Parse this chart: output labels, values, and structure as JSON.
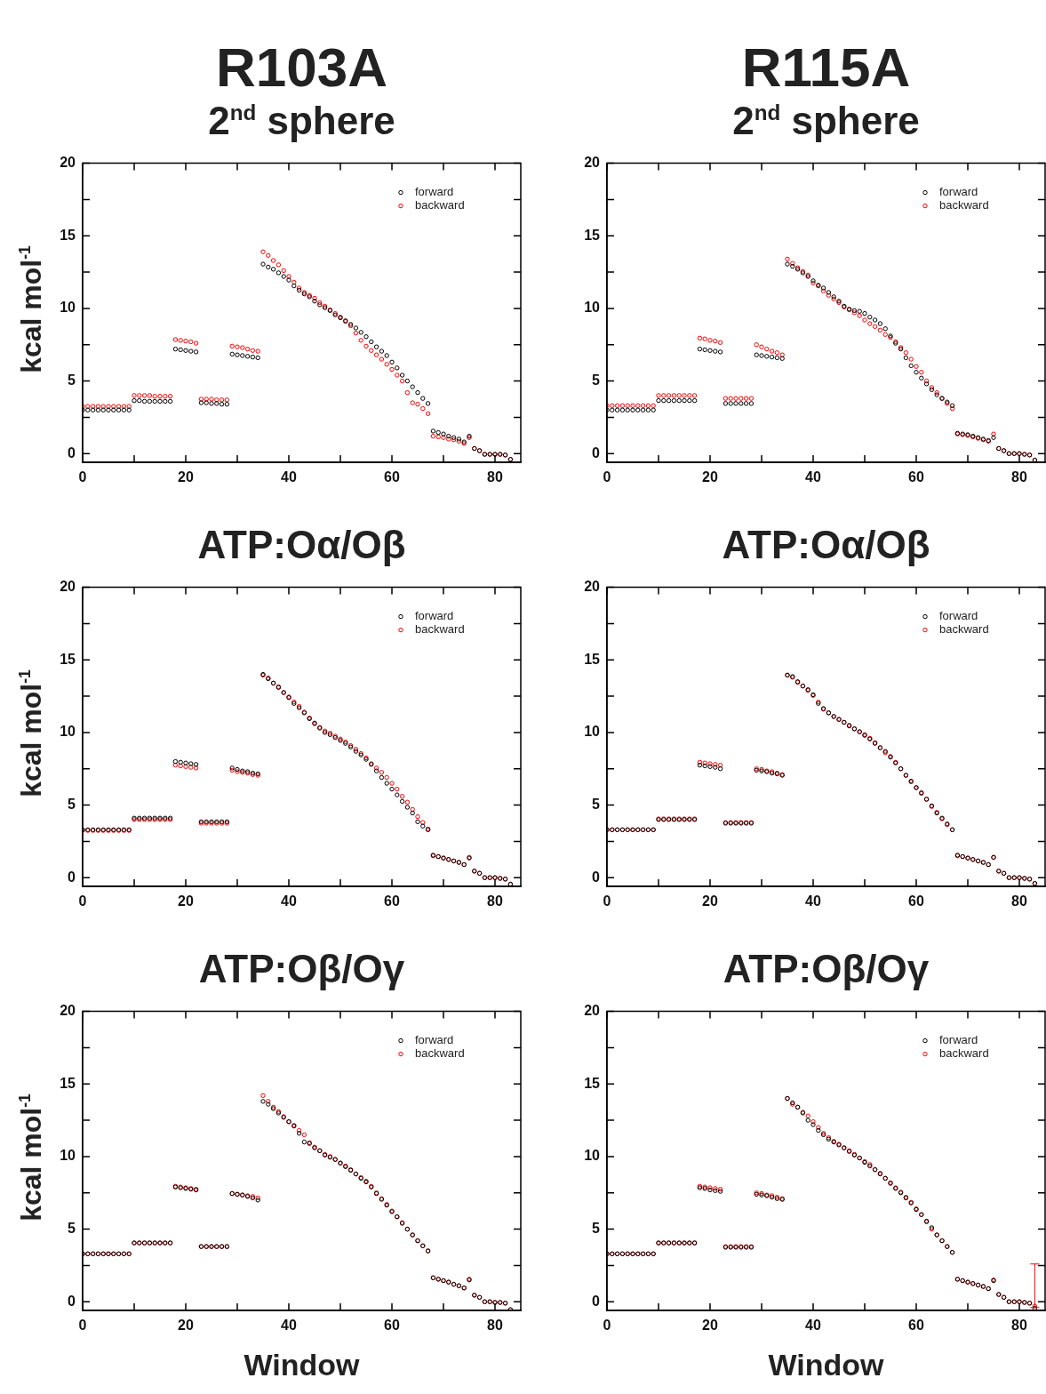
{
  "chart_data": [
    {
      "type": "scatter",
      "title": "R103A",
      "subtitle": "2$^{nd}$ sphere",
      "ylabel": "kcal mol$^{-1}$",
      "marker": "circle",
      "legend": "top right",
      "grid": false,
      "xlim": [
        0,
        85
      ],
      "xticks": [
        0,
        {
          "value": 10,
          "label": null
        },
        20,
        {
          "value": 30,
          "label": null
        },
        40,
        {
          "value": 50,
          "label": null
        },
        60,
        {
          "value": 70,
          "label": null
        },
        80
      ],
      "ylim": [
        -0.6,
        20
      ],
      "yticks": [
        0,
        {
          "value": 2.5,
          "label": null
        },
        5,
        {
          "value": 7.5,
          "label": null
        },
        10,
        {
          "value": 12.5,
          "label": null
        },
        15,
        {
          "value": 17.5,
          "label": null
        },
        20
      ],
      "x": [
        0,
        1,
        2,
        3,
        4,
        5,
        6,
        7,
        8,
        9,
        10,
        11,
        12,
        13,
        14,
        15,
        16,
        17,
        18,
        19,
        20,
        21,
        22,
        23,
        24,
        25,
        26,
        27,
        28,
        29,
        30,
        31,
        32,
        33,
        34,
        35,
        36,
        37,
        38,
        39,
        40,
        41,
        42,
        43,
        44,
        45,
        46,
        47,
        48,
        49,
        50,
        51,
        52,
        53,
        54,
        55,
        56,
        57,
        58,
        59,
        60,
        61,
        62,
        63,
        64,
        65,
        66,
        67,
        68,
        69,
        70,
        71,
        72,
        73,
        74,
        75,
        76,
        77,
        78,
        79,
        80,
        81,
        82,
        83
      ],
      "series": [
        {
          "name": "forward",
          "color": "#000000",
          "values": [
            3.0,
            3.0,
            3.0,
            3.0,
            3.0,
            3.0,
            3.0,
            3.0,
            3.0,
            3.0,
            3.65,
            3.65,
            3.6,
            3.6,
            3.6,
            3.6,
            3.6,
            3.6,
            7.2,
            7.15,
            7.1,
            7.05,
            7.0,
            3.5,
            3.5,
            3.45,
            3.45,
            3.4,
            3.4,
            6.85,
            6.8,
            6.75,
            6.7,
            6.65,
            6.6,
            13.05,
            12.85,
            12.7,
            12.45,
            12.2,
            11.95,
            11.55,
            11.25,
            11.0,
            10.8,
            10.5,
            10.25,
            10.05,
            9.85,
            9.55,
            9.35,
            9.15,
            8.9,
            8.65,
            8.35,
            8.05,
            7.7,
            7.35,
            7.05,
            6.75,
            6.3,
            5.9,
            5.4,
            5.0,
            4.6,
            4.2,
            3.8,
            3.45,
            1.55,
            1.45,
            1.35,
            1.2,
            1.1,
            1.0,
            0.8,
            1.2,
            0.35,
            0.2,
            -0.05,
            -0.05,
            -0.05,
            -0.05,
            -0.1,
            -0.4
          ]
        },
        {
          "name": "backward",
          "color": "#ff0000",
          "values": [
            3.25,
            3.25,
            3.25,
            3.25,
            3.25,
            3.25,
            3.25,
            3.25,
            3.25,
            3.25,
            4.0,
            4.0,
            4.0,
            4.0,
            3.95,
            3.95,
            3.95,
            3.95,
            7.85,
            7.8,
            7.75,
            7.7,
            7.6,
            3.75,
            3.75,
            3.75,
            3.7,
            3.7,
            3.7,
            7.4,
            7.35,
            7.3,
            7.2,
            7.1,
            7.05,
            13.9,
            13.65,
            13.3,
            13.0,
            12.6,
            12.2,
            11.8,
            11.4,
            11.1,
            10.9,
            10.7,
            10.4,
            10.15,
            9.9,
            9.65,
            9.4,
            9.1,
            8.8,
            8.3,
            7.8,
            7.4,
            7.1,
            6.8,
            6.5,
            6.15,
            5.8,
            5.4,
            5.0,
            4.2,
            3.5,
            3.4,
            3.1,
            2.75,
            1.2,
            1.15,
            1.1,
            1.0,
            0.95,
            0.85,
            0.7,
            1.1,
            0.35,
            0.2,
            -0.05,
            -0.05,
            -0.05,
            -0.05,
            -0.1,
            -0.4
          ]
        }
      ]
    },
    {
      "type": "scatter",
      "title": "R115A",
      "subtitle": "2$^{nd}$ sphere",
      "marker": "circle",
      "legend": "top right",
      "grid": false,
      "xlim": [
        0,
        85
      ],
      "xticks": [
        0,
        {
          "value": 10,
          "label": null
        },
        20,
        {
          "value": 30,
          "label": null
        },
        40,
        {
          "value": 50,
          "label": null
        },
        60,
        {
          "value": 70,
          "label": null
        },
        80
      ],
      "ylim": [
        -0.6,
        20
      ],
      "yticks": [
        0,
        {
          "value": 2.5,
          "label": null
        },
        5,
        {
          "value": 7.5,
          "label": null
        },
        10,
        {
          "value": 12.5,
          "label": null
        },
        15,
        {
          "value": 17.5,
          "label": null
        },
        20
      ],
      "x": [
        0,
        1,
        2,
        3,
        4,
        5,
        6,
        7,
        8,
        9,
        10,
        11,
        12,
        13,
        14,
        15,
        16,
        17,
        18,
        19,
        20,
        21,
        22,
        23,
        24,
        25,
        26,
        27,
        28,
        29,
        30,
        31,
        32,
        33,
        34,
        35,
        36,
        37,
        38,
        39,
        40,
        41,
        42,
        43,
        44,
        45,
        46,
        47,
        48,
        49,
        50,
        51,
        52,
        53,
        54,
        55,
        56,
        57,
        58,
        59,
        60,
        61,
        62,
        63,
        64,
        65,
        66,
        67,
        68,
        69,
        70,
        71,
        72,
        73,
        74,
        75,
        76,
        77,
        78,
        79,
        80,
        81,
        82,
        83
      ],
      "series": [
        {
          "name": "forward",
          "color": "#000000",
          "values": [
            3.0,
            3.0,
            3.0,
            3.0,
            3.0,
            3.0,
            3.0,
            3.0,
            3.0,
            3.0,
            3.65,
            3.65,
            3.65,
            3.65,
            3.65,
            3.65,
            3.65,
            3.65,
            7.2,
            7.15,
            7.1,
            7.05,
            7.0,
            3.45,
            3.45,
            3.45,
            3.45,
            3.45,
            3.45,
            6.8,
            6.75,
            6.7,
            6.65,
            6.6,
            6.55,
            13.05,
            12.9,
            12.7,
            12.45,
            12.2,
            11.9,
            11.6,
            11.4,
            11.1,
            10.8,
            10.5,
            10.15,
            9.95,
            9.85,
            9.8,
            9.65,
            9.4,
            9.2,
            8.95,
            8.6,
            8.1,
            7.6,
            7.2,
            6.6,
            6.05,
            5.6,
            5.2,
            4.8,
            4.4,
            4.05,
            3.8,
            3.55,
            3.3,
            1.4,
            1.35,
            1.3,
            1.2,
            1.1,
            1.0,
            0.9,
            1.1,
            0.35,
            0.2,
            0.0,
            0.0,
            0.0,
            -0.05,
            -0.1,
            -0.45
          ]
        },
        {
          "name": "backward",
          "color": "#ff0000",
          "values": [
            3.3,
            3.3,
            3.3,
            3.3,
            3.3,
            3.3,
            3.3,
            3.3,
            3.3,
            3.3,
            4.0,
            4.0,
            4.0,
            4.0,
            4.0,
            4.0,
            4.0,
            4.0,
            7.95,
            7.9,
            7.8,
            7.75,
            7.65,
            3.8,
            3.8,
            3.8,
            3.8,
            3.8,
            3.8,
            7.5,
            7.35,
            7.2,
            7.05,
            6.95,
            6.8,
            13.4,
            13.1,
            12.8,
            12.55,
            12.3,
            11.75,
            11.55,
            11.2,
            10.9,
            10.65,
            10.4,
            10.1,
            9.9,
            9.7,
            9.5,
            9.2,
            8.95,
            8.75,
            8.5,
            8.2,
            8.0,
            7.7,
            7.3,
            6.95,
            6.5,
            6.0,
            5.6,
            5.0,
            4.55,
            4.2,
            3.8,
            3.45,
            3.1,
            1.35,
            1.3,
            1.25,
            1.15,
            1.05,
            0.95,
            0.85,
            1.35,
            0.35,
            0.2,
            0.0,
            0.0,
            0.0,
            -0.05,
            -0.1,
            -0.45
          ]
        }
      ]
    },
    {
      "type": "scatter",
      "title": "ATP:Oα/Oβ",
      "ylabel": "kcal mol$^{-1}$",
      "marker": "circle",
      "legend": "top right",
      "grid": false,
      "xlim": [
        0,
        85
      ],
      "xticks": [
        0,
        {
          "value": 10,
          "label": null
        },
        20,
        {
          "value": 30,
          "label": null
        },
        40,
        {
          "value": 50,
          "label": null
        },
        60,
        {
          "value": 70,
          "label": null
        },
        80
      ],
      "ylim": [
        -0.6,
        20
      ],
      "yticks": [
        0,
        {
          "value": 2.5,
          "label": null
        },
        5,
        {
          "value": 7.5,
          "label": null
        },
        10,
        {
          "value": 12.5,
          "label": null
        },
        15,
        {
          "value": 17.5,
          "label": null
        },
        20
      ],
      "x": [
        0,
        1,
        2,
        3,
        4,
        5,
        6,
        7,
        8,
        9,
        10,
        11,
        12,
        13,
        14,
        15,
        16,
        17,
        18,
        19,
        20,
        21,
        22,
        23,
        24,
        25,
        26,
        27,
        28,
        29,
        30,
        31,
        32,
        33,
        34,
        35,
        36,
        37,
        38,
        39,
        40,
        41,
        42,
        43,
        44,
        45,
        46,
        47,
        48,
        49,
        50,
        51,
        52,
        53,
        54,
        55,
        56,
        57,
        58,
        59,
        60,
        61,
        62,
        63,
        64,
        65,
        66,
        67,
        68,
        69,
        70,
        71,
        72,
        73,
        74,
        75,
        76,
        77,
        78,
        79,
        80,
        81,
        82,
        83
      ],
      "series": [
        {
          "name": "forward",
          "color": "#000000",
          "values": [
            3.3,
            3.3,
            3.3,
            3.3,
            3.3,
            3.3,
            3.3,
            3.3,
            3.3,
            3.3,
            4.1,
            4.1,
            4.1,
            4.1,
            4.1,
            4.1,
            4.1,
            4.1,
            8.0,
            7.95,
            7.9,
            7.85,
            7.8,
            3.85,
            3.85,
            3.85,
            3.85,
            3.85,
            3.85,
            7.55,
            7.45,
            7.35,
            7.3,
            7.2,
            7.15,
            14.0,
            13.7,
            13.4,
            13.1,
            12.75,
            12.4,
            12.0,
            11.7,
            11.35,
            10.95,
            10.65,
            10.3,
            10.0,
            9.85,
            9.65,
            9.45,
            9.25,
            9.0,
            8.7,
            8.45,
            8.15,
            7.8,
            7.35,
            6.9,
            6.5,
            6.1,
            5.7,
            5.25,
            4.85,
            4.45,
            3.85,
            3.55,
            3.3,
            1.55,
            1.45,
            1.35,
            1.25,
            1.15,
            1.05,
            0.9,
            1.35,
            0.45,
            0.3,
            0.0,
            0.0,
            0.0,
            -0.05,
            -0.1,
            -0.45
          ]
        },
        {
          "name": "backward",
          "color": "#ff0000",
          "values": [
            3.25,
            3.25,
            3.25,
            3.25,
            3.25,
            3.25,
            3.25,
            3.25,
            3.25,
            3.25,
            4.0,
            4.0,
            4.0,
            4.0,
            4.0,
            4.0,
            4.0,
            4.0,
            7.75,
            7.7,
            7.65,
            7.6,
            7.55,
            3.75,
            3.75,
            3.75,
            3.75,
            3.75,
            3.75,
            7.4,
            7.3,
            7.25,
            7.2,
            7.1,
            7.05,
            13.95,
            13.75,
            13.4,
            13.15,
            12.75,
            12.45,
            12.1,
            11.8,
            11.4,
            11.0,
            10.6,
            10.35,
            10.1,
            9.95,
            9.75,
            9.55,
            9.35,
            9.1,
            8.85,
            8.55,
            8.25,
            7.85,
            7.55,
            7.25,
            6.9,
            6.5,
            6.1,
            5.6,
            5.2,
            4.7,
            4.2,
            3.8,
            3.35,
            1.5,
            1.45,
            1.35,
            1.25,
            1.15,
            1.05,
            0.9,
            1.4,
            0.45,
            0.3,
            0.0,
            0.0,
            0.0,
            -0.05,
            -0.1,
            -0.45
          ]
        }
      ]
    },
    {
      "type": "scatter",
      "title": "ATP:Oα/Oβ",
      "marker": "circle",
      "legend": "top right",
      "grid": false,
      "xlim": [
        0,
        85
      ],
      "xticks": [
        0,
        {
          "value": 10,
          "label": null
        },
        20,
        {
          "value": 30,
          "label": null
        },
        40,
        {
          "value": 50,
          "label": null
        },
        60,
        {
          "value": 70,
          "label": null
        },
        80
      ],
      "ylim": [
        -0.6,
        20
      ],
      "yticks": [
        0,
        {
          "value": 2.5,
          "label": null
        },
        5,
        {
          "value": 7.5,
          "label": null
        },
        10,
        {
          "value": 12.5,
          "label": null
        },
        15,
        {
          "value": 17.5,
          "label": null
        },
        20
      ],
      "x": [
        0,
        1,
        2,
        3,
        4,
        5,
        6,
        7,
        8,
        9,
        10,
        11,
        12,
        13,
        14,
        15,
        16,
        17,
        18,
        19,
        20,
        21,
        22,
        23,
        24,
        25,
        26,
        27,
        28,
        29,
        30,
        31,
        32,
        33,
        34,
        35,
        36,
        37,
        38,
        39,
        40,
        41,
        42,
        43,
        44,
        45,
        46,
        47,
        48,
        49,
        50,
        51,
        52,
        53,
        54,
        55,
        56,
        57,
        58,
        59,
        60,
        61,
        62,
        63,
        64,
        65,
        66,
        67,
        68,
        69,
        70,
        71,
        72,
        73,
        74,
        75,
        76,
        77,
        78,
        79,
        80,
        81,
        82,
        83
      ],
      "series": [
        {
          "name": "forward",
          "color": "#000000",
          "values": [
            3.3,
            3.3,
            3.3,
            3.3,
            3.3,
            3.3,
            3.3,
            3.3,
            3.3,
            3.3,
            4.0,
            4.0,
            4.0,
            4.0,
            4.0,
            4.0,
            4.0,
            4.0,
            7.75,
            7.7,
            7.65,
            7.6,
            7.5,
            3.75,
            3.75,
            3.75,
            3.75,
            3.75,
            3.75,
            7.4,
            7.35,
            7.3,
            7.2,
            7.15,
            7.05,
            13.95,
            13.85,
            13.5,
            13.2,
            12.95,
            12.6,
            12.0,
            11.65,
            11.35,
            11.1,
            10.9,
            10.7,
            10.45,
            10.25,
            10.05,
            9.8,
            9.55,
            9.25,
            8.95,
            8.7,
            8.3,
            7.9,
            7.5,
            7.05,
            6.65,
            6.2,
            5.85,
            5.4,
            4.95,
            4.45,
            4.1,
            3.7,
            3.3,
            1.55,
            1.45,
            1.35,
            1.25,
            1.15,
            1.05,
            0.9,
            1.4,
            0.45,
            0.3,
            0.0,
            0.0,
            0.0,
            -0.05,
            -0.1,
            -0.4
          ]
        },
        {
          "name": "backward",
          "color": "#ff0000",
          "values": [
            3.3,
            3.3,
            3.3,
            3.3,
            3.3,
            3.3,
            3.3,
            3.3,
            3.3,
            3.3,
            4.05,
            4.05,
            4.05,
            4.05,
            4.05,
            4.05,
            4.05,
            4.05,
            7.95,
            7.9,
            7.85,
            7.8,
            7.75,
            3.8,
            3.8,
            3.8,
            3.8,
            3.8,
            3.8,
            7.5,
            7.45,
            7.35,
            7.3,
            7.2,
            7.1,
            13.95,
            13.8,
            13.45,
            13.2,
            12.9,
            12.55,
            12.1,
            11.6,
            11.35,
            11.1,
            10.9,
            10.7,
            10.5,
            10.25,
            10.05,
            9.85,
            9.6,
            9.3,
            8.95,
            8.6,
            8.35,
            7.95,
            7.5,
            7.05,
            6.6,
            6.2,
            5.8,
            5.4,
            4.9,
            4.5,
            4.05,
            3.65,
            3.3,
            1.5,
            1.45,
            1.35,
            1.25,
            1.15,
            1.05,
            0.9,
            1.4,
            0.45,
            0.3,
            0.0,
            0.0,
            0.0,
            -0.05,
            -0.1,
            -0.4
          ]
        }
      ]
    },
    {
      "type": "scatter",
      "title": "ATP:Oβ/Oγ",
      "ylabel": "kcal mol$^{-1}$",
      "xlabel": "Window",
      "marker": "circle",
      "legend": "top right",
      "grid": false,
      "xlim": [
        0,
        85
      ],
      "xticks": [
        0,
        {
          "value": 10,
          "label": null
        },
        20,
        {
          "value": 30,
          "label": null
        },
        40,
        {
          "value": 50,
          "label": null
        },
        60,
        {
          "value": 70,
          "label": null
        },
        80
      ],
      "ylim": [
        -0.6,
        20
      ],
      "yticks": [
        0,
        {
          "value": 2.5,
          "label": null
        },
        5,
        {
          "value": 7.5,
          "label": null
        },
        10,
        {
          "value": 12.5,
          "label": null
        },
        15,
        {
          "value": 17.5,
          "label": null
        },
        20
      ],
      "x": [
        0,
        1,
        2,
        3,
        4,
        5,
        6,
        7,
        8,
        9,
        10,
        11,
        12,
        13,
        14,
        15,
        16,
        17,
        18,
        19,
        20,
        21,
        22,
        23,
        24,
        25,
        26,
        27,
        28,
        29,
        30,
        31,
        32,
        33,
        34,
        35,
        36,
        37,
        38,
        39,
        40,
        41,
        42,
        43,
        44,
        45,
        46,
        47,
        48,
        49,
        50,
        51,
        52,
        53,
        54,
        55,
        56,
        57,
        58,
        59,
        60,
        61,
        62,
        63,
        64,
        65,
        66,
        67,
        68,
        69,
        70,
        71,
        72,
        73,
        74,
        75,
        76,
        77,
        78,
        79,
        80,
        81,
        82,
        83
      ],
      "series": [
        {
          "name": "forward",
          "color": "#000000",
          "values": [
            3.3,
            3.3,
            3.3,
            3.3,
            3.3,
            3.3,
            3.3,
            3.3,
            3.3,
            3.3,
            4.05,
            4.05,
            4.05,
            4.05,
            4.05,
            4.05,
            4.05,
            4.05,
            7.9,
            7.85,
            7.8,
            7.75,
            7.7,
            3.8,
            3.8,
            3.8,
            3.8,
            3.8,
            3.8,
            7.45,
            7.4,
            7.35,
            7.25,
            7.15,
            7.0,
            13.8,
            13.6,
            13.3,
            13.0,
            12.7,
            12.4,
            12.1,
            11.6,
            11.0,
            10.9,
            10.6,
            10.4,
            10.1,
            9.95,
            9.8,
            9.55,
            9.3,
            9.05,
            8.8,
            8.5,
            8.25,
            7.9,
            7.45,
            7.05,
            6.65,
            6.2,
            5.85,
            5.4,
            5.0,
            4.6,
            4.2,
            3.85,
            3.5,
            1.65,
            1.55,
            1.45,
            1.35,
            1.2,
            1.1,
            0.95,
            1.5,
            0.45,
            0.3,
            0.0,
            0.0,
            -0.05,
            -0.05,
            -0.1,
            -0.55
          ]
        },
        {
          "name": "backward",
          "color": "#ff0000",
          "values": [
            3.3,
            3.3,
            3.3,
            3.3,
            3.3,
            3.3,
            3.3,
            3.3,
            3.3,
            3.3,
            4.05,
            4.05,
            4.05,
            4.05,
            4.05,
            4.05,
            4.05,
            4.05,
            7.95,
            7.9,
            7.85,
            7.8,
            7.75,
            3.8,
            3.8,
            3.8,
            3.8,
            3.8,
            3.8,
            7.45,
            7.4,
            7.35,
            7.3,
            7.25,
            7.15,
            14.2,
            13.8,
            13.4,
            13.1,
            12.75,
            12.4,
            12.15,
            11.8,
            11.5,
            10.95,
            10.65,
            10.4,
            10.15,
            10.0,
            9.8,
            9.55,
            9.35,
            9.1,
            8.8,
            8.55,
            8.3,
            7.95,
            7.5,
            7.1,
            6.7,
            6.25,
            5.85,
            5.45,
            5.0,
            4.6,
            4.2,
            3.85,
            3.5,
            1.65,
            1.55,
            1.45,
            1.35,
            1.2,
            1.1,
            0.95,
            1.55,
            0.45,
            0.3,
            0.0,
            0.0,
            -0.05,
            -0.05,
            -0.1,
            -0.55
          ]
        }
      ]
    },
    {
      "type": "scatter",
      "title": "ATP:Oβ/Oγ",
      "xlabel": "Window",
      "marker": "circle",
      "legend": "top right",
      "grid": false,
      "xlim": [
        0,
        85
      ],
      "xticks": [
        0,
        {
          "value": 10,
          "label": null
        },
        20,
        {
          "value": 30,
          "label": null
        },
        40,
        {
          "value": 50,
          "label": null
        },
        60,
        {
          "value": 70,
          "label": null
        },
        80
      ],
      "ylim": [
        -0.6,
        20
      ],
      "yticks": [
        0,
        {
          "value": 2.5,
          "label": null
        },
        5,
        {
          "value": 7.5,
          "label": null
        },
        10,
        {
          "value": 12.5,
          "label": null
        },
        15,
        {
          "value": 17.5,
          "label": null
        },
        20
      ],
      "x": [
        0,
        1,
        2,
        3,
        4,
        5,
        6,
        7,
        8,
        9,
        10,
        11,
        12,
        13,
        14,
        15,
        16,
        17,
        18,
        19,
        20,
        21,
        22,
        23,
        24,
        25,
        26,
        27,
        28,
        29,
        30,
        31,
        32,
        33,
        34,
        35,
        36,
        37,
        38,
        39,
        40,
        41,
        42,
        43,
        44,
        45,
        46,
        47,
        48,
        49,
        50,
        51,
        52,
        53,
        54,
        55,
        56,
        57,
        58,
        59,
        60,
        61,
        62,
        63,
        64,
        65,
        66,
        67,
        68,
        69,
        70,
        71,
        72,
        73,
        74,
        75,
        76,
        77,
        78,
        79,
        80,
        81,
        82,
        83
      ],
      "series": [
        {
          "name": "forward",
          "color": "#000000",
          "values": [
            3.3,
            3.3,
            3.3,
            3.3,
            3.3,
            3.3,
            3.3,
            3.3,
            3.3,
            3.3,
            4.05,
            4.05,
            4.05,
            4.05,
            4.05,
            4.05,
            4.05,
            4.05,
            7.85,
            7.8,
            7.7,
            7.65,
            7.6,
            3.75,
            3.75,
            3.75,
            3.75,
            3.75,
            3.75,
            7.4,
            7.35,
            7.3,
            7.2,
            7.1,
            7.05,
            14.0,
            13.7,
            13.4,
            13.0,
            12.5,
            12.2,
            11.8,
            11.5,
            11.2,
            11.0,
            10.8,
            10.6,
            10.35,
            10.1,
            9.9,
            9.6,
            9.35,
            9.1,
            8.8,
            8.5,
            8.15,
            7.8,
            7.5,
            7.15,
            6.8,
            6.35,
            6.0,
            5.55,
            5.1,
            4.6,
            4.2,
            3.8,
            3.4,
            1.55,
            1.45,
            1.35,
            1.25,
            1.15,
            1.05,
            0.9,
            1.45,
            0.5,
            0.3,
            0.0,
            0.0,
            0.0,
            -0.05,
            -0.1,
            -0.45
          ]
        },
        {
          "name": "backward",
          "color": "#ff0000",
          "values": [
            3.3,
            3.3,
            3.3,
            3.3,
            3.3,
            3.3,
            3.3,
            3.3,
            3.3,
            3.3,
            4.05,
            4.05,
            4.05,
            4.05,
            4.05,
            4.05,
            4.05,
            4.05,
            7.95,
            7.9,
            7.85,
            7.8,
            7.75,
            3.8,
            3.8,
            3.8,
            3.8,
            3.8,
            3.8,
            7.5,
            7.45,
            7.35,
            7.3,
            7.2,
            7.1,
            14.0,
            13.6,
            13.4,
            13.05,
            12.8,
            12.4,
            12.0,
            11.6,
            11.3,
            11.05,
            10.85,
            10.6,
            10.4,
            10.15,
            9.9,
            9.65,
            9.45,
            9.1,
            8.85,
            8.5,
            8.2,
            7.85,
            7.55,
            7.2,
            6.85,
            6.4,
            6.0,
            5.5,
            5.0,
            4.6,
            4.2,
            3.8,
            3.4,
            1.55,
            1.45,
            1.35,
            1.25,
            1.15,
            1.05,
            0.9,
            1.5,
            0.5,
            0.3,
            0.0,
            0.0,
            0.0,
            -0.05,
            -0.1,
            -0.3
          ],
          "errors": [
            null,
            null,
            null,
            null,
            null,
            null,
            null,
            null,
            null,
            null,
            null,
            null,
            null,
            null,
            null,
            null,
            null,
            null,
            null,
            null,
            null,
            null,
            null,
            null,
            null,
            null,
            null,
            null,
            null,
            null,
            null,
            null,
            null,
            null,
            null,
            null,
            null,
            null,
            null,
            null,
            null,
            null,
            null,
            null,
            null,
            null,
            null,
            null,
            null,
            null,
            null,
            null,
            null,
            null,
            null,
            null,
            null,
            null,
            null,
            null,
            null,
            null,
            null,
            null,
            null,
            null,
            null,
            null,
            null,
            null,
            null,
            null,
            null,
            null,
            null,
            null,
            null,
            null,
            null,
            null,
            null,
            null,
            null,
            [
              -0.4,
              2.6
            ]
          ]
        }
      ]
    }
  ]
}
